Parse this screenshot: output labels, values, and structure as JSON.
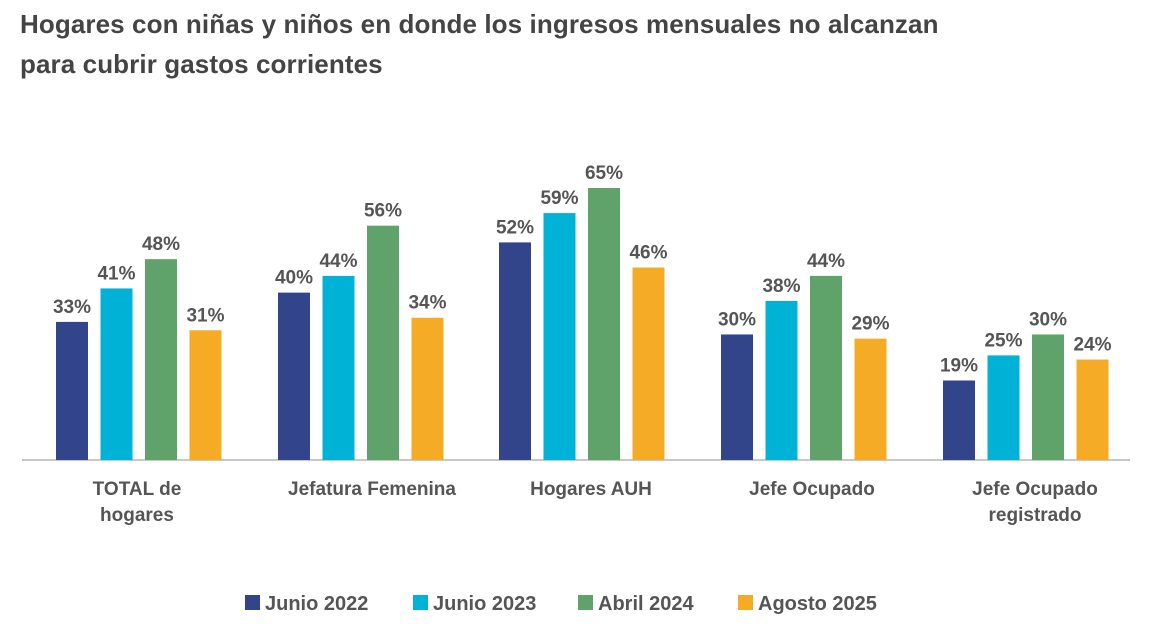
{
  "chart_data": {
    "type": "bar",
    "title": "Hogares con niñas y niños en donde los ingresos mensuales no alcanzan para cubrir gastos corrientes",
    "title_lines": [
      "Hogares con niñas y niños en donde los ingresos mensuales no alcanzan",
      "para cubrir gastos corrientes"
    ],
    "categories": [
      [
        "TOTAL de",
        "hogares"
      ],
      [
        "Jefatura Femenina"
      ],
      [
        "Hogares AUH"
      ],
      [
        "Jefe Ocupado"
      ],
      [
        "Jefe Ocupado",
        "registrado"
      ]
    ],
    "series": [
      {
        "name": "Junio 2022",
        "color": "#33458a",
        "values": [
          33,
          40,
          52,
          30,
          19
        ],
        "labels": [
          "33%",
          "40%",
          "52%",
          "30%",
          "19%"
        ]
      },
      {
        "name": "Junio 2023",
        "color": "#00b2d6",
        "values": [
          41,
          44,
          59,
          38,
          25
        ],
        "labels": [
          "41%",
          "44%",
          "59%",
          "38%",
          "25%"
        ]
      },
      {
        "name": "Abril 2024",
        "color": "#5fa36a",
        "values": [
          48,
          56,
          65,
          44,
          30
        ],
        "labels": [
          "48%",
          "56%",
          "65%",
          "44%",
          "30%"
        ]
      },
      {
        "name": "Agosto 2025",
        "color": "#f6ab27",
        "values": [
          31,
          34,
          46,
          29,
          24
        ],
        "labels": [
          "31%",
          "34%",
          "46%",
          "29%",
          "24%"
        ]
      }
    ],
    "ylim": [
      0,
      65
    ],
    "xlabel": "",
    "ylabel": "",
    "grid": false,
    "legend_position": "bottom"
  }
}
